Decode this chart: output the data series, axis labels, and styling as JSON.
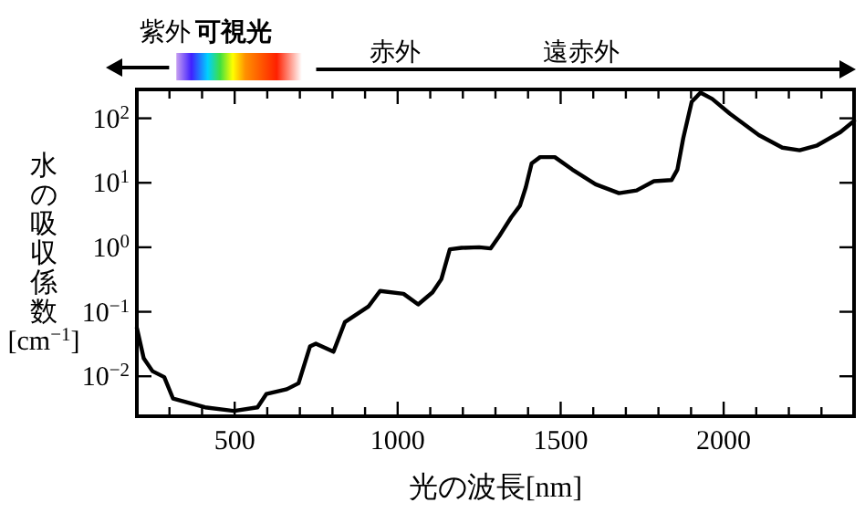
{
  "chart_data": {
    "type": "line",
    "xlabel": "光の波長[nm]",
    "ylabel": "水の吸収係数[cm$^{−1}$]",
    "annotations": [
      "紫外",
      "可視光",
      "赤外",
      "遠赤外"
    ],
    "log": "y",
    "line_style": "solid",
    "xlim": [
      200,
      2400
    ],
    "ylim": [
      0.0024,
      280
    ],
    "xticks": [
      {
        "value": 300,
        "label": null
      },
      {
        "value": 400,
        "label": null
      },
      500,
      {
        "value": 600,
        "label": null
      },
      {
        "value": 700,
        "label": null
      },
      {
        "value": 800,
        "label": null
      },
      {
        "value": 900,
        "label": null
      },
      1000,
      {
        "value": 1100,
        "label": null
      },
      {
        "value": 1200,
        "label": null
      },
      {
        "value": 1300,
        "label": null
      },
      {
        "value": 1400,
        "label": null
      },
      1500,
      {
        "value": 1600,
        "label": null
      },
      {
        "value": 1700,
        "label": null
      },
      {
        "value": 1800,
        "label": null
      },
      {
        "value": 1900,
        "label": null
      },
      2000,
      {
        "value": 2100,
        "label": null
      },
      {
        "value": 2200,
        "label": null
      },
      {
        "value": 2300,
        "label": null
      }
    ],
    "yticks": [
      {
        "value": 0.01,
        "label": "10$^{−2}$"
      },
      {
        "value": 0.1,
        "label": "10$^{−1}$"
      },
      {
        "value": 1,
        "label": "10$^{0}$"
      },
      {
        "value": 10,
        "label": "10$^{1}$"
      },
      {
        "value": 100,
        "label": "10$^{2}$"
      }
    ],
    "series": [
      {
        "color": "#000000",
        "x": [
          200,
          221,
          248,
          284,
          311,
          409,
          499,
          570,
          597,
          660,
          696,
          731,
          749,
          803,
          838,
          910,
          946,
          1018,
          1063,
          1107,
          1134,
          1160,
          1196,
          1250,
          1285,
          1312,
          1348,
          1375,
          1393,
          1411,
          1437,
          1482,
          1536,
          1607,
          1679,
          1733,
          1786,
          1840,
          1858,
          1876,
          1902,
          1929,
          1965,
          2019,
          2108,
          2180,
          2233,
          2287,
          2358,
          2400
        ],
        "values": [
          0.056,
          0.019,
          0.012,
          0.0097,
          0.0045,
          0.0033,
          0.0029,
          0.0033,
          0.0053,
          0.0063,
          0.0078,
          0.029,
          0.032,
          0.024,
          0.069,
          0.12,
          0.21,
          0.19,
          0.13,
          0.2,
          0.32,
          0.93,
          0.98,
          1.0,
          0.96,
          1.5,
          2.9,
          4.4,
          8.5,
          20,
          25,
          25,
          16,
          9.5,
          6.9,
          7.6,
          10.6,
          11,
          16,
          49,
          180,
          250,
          200,
          118,
          55,
          35,
          32,
          38,
          61,
          91
        ]
      }
    ]
  }
}
